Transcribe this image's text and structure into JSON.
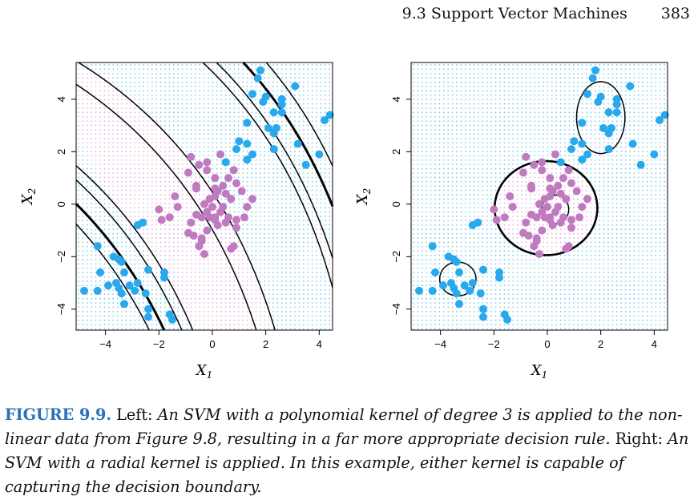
{
  "header": {
    "section": "9.3 Support Vector Machines",
    "page": "383"
  },
  "caption": {
    "figure_number": "FIGURE 9.9.",
    "part1": "Left:",
    "part2": "An SVM with a polynomial kernel of degree 3 is applied to the non-linear data from Figure 9.8, resulting in a far more appropriate decision rule.",
    "part3": "Right:",
    "part4": "An SVM with a radial kernel is applied. In this example, either kernel is capable of capturing the decision boundary."
  },
  "colors": {
    "class_outer": "#29a8ee",
    "class_inner": "#c07ac0",
    "grid_blue": "#3bb8e8",
    "grid_pink": "#d88ad0"
  },
  "chart_data": [
    {
      "type": "scatter",
      "title": "",
      "xlabel": "X1",
      "ylabel": "X2",
      "xlim": [
        -5.1,
        4.5
      ],
      "ylim": [
        -4.8,
        5.4
      ],
      "xticks": [
        -4,
        -2,
        0,
        2,
        4
      ],
      "yticks": [
        -4,
        -2,
        0,
        2,
        4
      ],
      "kernel": "polynomial degree 3",
      "series": [
        {
          "color": "#29a8ee",
          "points": [
            [
              1.8,
              5.1
            ],
            [
              1.7,
              4.8
            ],
            [
              2.0,
              4.1
            ],
            [
              2.6,
              4.0
            ],
            [
              1.9,
              3.9
            ],
            [
              2.6,
              3.8
            ],
            [
              3.1,
              4.5
            ],
            [
              1.5,
              4.2
            ],
            [
              2.3,
              3.5
            ],
            [
              2.6,
              3.5
            ],
            [
              2.1,
              2.9
            ],
            [
              2.4,
              2.9
            ],
            [
              2.3,
              2.7
            ],
            [
              1.3,
              3.1
            ],
            [
              1.0,
              2.4
            ],
            [
              1.3,
              2.3
            ],
            [
              0.9,
              2.1
            ],
            [
              1.5,
              1.9
            ],
            [
              1.3,
              1.7
            ],
            [
              0.5,
              1.6
            ],
            [
              3.2,
              2.3
            ],
            [
              2.3,
              2.1
            ],
            [
              3.5,
              1.5
            ],
            [
              4.0,
              1.9
            ],
            [
              4.2,
              3.2
            ],
            [
              4.4,
              3.4
            ],
            [
              -4.3,
              -1.6
            ],
            [
              -3.7,
              -2.0
            ],
            [
              -3.5,
              -2.1
            ],
            [
              -3.4,
              -2.2
            ],
            [
              -3.3,
              -2.6
            ],
            [
              -4.2,
              -2.6
            ],
            [
              -2.4,
              -2.5
            ],
            [
              -1.8,
              -2.6
            ],
            [
              -1.8,
              -2.8
            ],
            [
              -3.9,
              -3.1
            ],
            [
              -3.6,
              -3.0
            ],
            [
              -3.5,
              -3.2
            ],
            [
              -3.4,
              -3.4
            ],
            [
              -3.1,
              -3.1
            ],
            [
              -2.8,
              -3.0
            ],
            [
              -2.9,
              -3.3
            ],
            [
              -2.5,
              -3.4
            ],
            [
              -4.8,
              -3.3
            ],
            [
              -4.3,
              -3.3
            ],
            [
              -3.3,
              -3.8
            ],
            [
              -2.4,
              -4.0
            ],
            [
              -2.4,
              -4.3
            ],
            [
              -1.6,
              -4.2
            ],
            [
              -1.5,
              -4.4
            ],
            [
              -2.8,
              -0.8
            ],
            [
              -2.6,
              -0.7
            ]
          ]
        },
        {
          "color": "#c07ac0",
          "points": [
            [
              -0.8,
              1.8
            ],
            [
              -0.2,
              1.6
            ],
            [
              -0.5,
              1.5
            ],
            [
              -0.2,
              1.3
            ],
            [
              0.8,
              1.3
            ],
            [
              -0.9,
              1.2
            ],
            [
              0.1,
              1.0
            ],
            [
              0.6,
              1.0
            ],
            [
              -1.4,
              0.3
            ],
            [
              0.4,
              0.7
            ],
            [
              0.9,
              0.8
            ],
            [
              -0.6,
              0.6
            ],
            [
              0.2,
              0.5
            ],
            [
              0.5,
              0.4
            ],
            [
              1.1,
              0.5
            ],
            [
              0.7,
              0.2
            ],
            [
              1.5,
              0.2
            ],
            [
              1.3,
              -0.1
            ],
            [
              0.1,
              0.3
            ],
            [
              -0.1,
              0.2
            ],
            [
              -0.3,
              0.0
            ],
            [
              -0.6,
              -0.4
            ],
            [
              -0.4,
              -0.5
            ],
            [
              -0.1,
              -0.5
            ],
            [
              0.1,
              -0.5
            ],
            [
              0.3,
              -0.3
            ],
            [
              0.6,
              -0.5
            ],
            [
              0.9,
              -0.6
            ],
            [
              1.2,
              -0.5
            ],
            [
              0.2,
              -0.8
            ],
            [
              0.5,
              -0.7
            ],
            [
              0.9,
              -0.9
            ],
            [
              -0.8,
              -0.7
            ],
            [
              -0.9,
              -1.1
            ],
            [
              -0.7,
              -1.2
            ],
            [
              -0.4,
              -1.3
            ],
            [
              -0.2,
              -1.0
            ],
            [
              0.0,
              -0.1
            ],
            [
              -0.5,
              -1.6
            ],
            [
              -0.3,
              -1.9
            ],
            [
              -0.4,
              -1.4
            ],
            [
              0.7,
              -1.7
            ],
            [
              0.8,
              -1.6
            ],
            [
              0.4,
              -0.1
            ],
            [
              -0.2,
              -0.3
            ],
            [
              -1.3,
              -0.1
            ],
            [
              -2.0,
              -0.2
            ],
            [
              -1.9,
              -0.6
            ],
            [
              -1.6,
              -0.5
            ],
            [
              0.1,
              0.6
            ],
            [
              0.3,
              1.9
            ],
            [
              0.1,
              -0.6
            ],
            [
              -0.6,
              0.7
            ]
          ]
        }
      ],
      "boundary": {
        "degree": 3
      }
    },
    {
      "type": "scatter",
      "title": "",
      "xlabel": "X1",
      "ylabel": "X2",
      "xlim": [
        -5.1,
        4.5
      ],
      "ylim": [
        -4.8,
        5.4
      ],
      "xticks": [
        -4,
        -2,
        0,
        2,
        4
      ],
      "yticks": [
        -4,
        -2,
        0,
        2,
        4
      ],
      "kernel": "radial",
      "series": "same as left panel"
    }
  ]
}
